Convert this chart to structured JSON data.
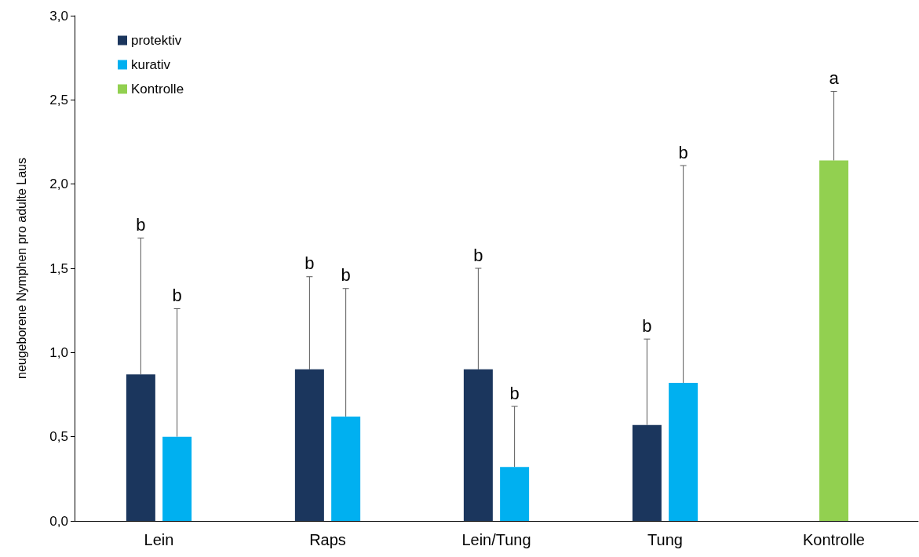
{
  "chart_data": {
    "type": "bar",
    "ylabel": "neugeborene Nymphen pro adulte Laus",
    "categories": [
      "Lein",
      "Raps",
      "Lein/Tung",
      "Tung",
      "Kontrolle"
    ],
    "series": [
      {
        "name": "protektiv",
        "color": "#1b365d",
        "values": [
          0.87,
          0.9,
          0.9,
          0.57,
          null
        ],
        "errors": [
          [
            0.87,
            1.68
          ],
          [
            0.9,
            1.45
          ],
          [
            0.9,
            1.5
          ],
          [
            0.57,
            1.08
          ],
          null
        ]
      },
      {
        "name": "kurativ",
        "color": "#00b0f0",
        "values": [
          0.5,
          0.62,
          0.32,
          0.82,
          null
        ],
        "errors": [
          [
            0.5,
            1.26
          ],
          [
            0.62,
            1.38
          ],
          [
            0.32,
            0.68
          ],
          [
            0.82,
            2.11
          ],
          null
        ]
      },
      {
        "name": "Kontrolle",
        "color": "#92d050",
        "values": [
          null,
          null,
          null,
          null,
          2.14
        ],
        "errors": [
          null,
          null,
          null,
          null,
          [
            2.14,
            2.55
          ]
        ]
      }
    ],
    "annotations": [
      "b",
      "b",
      "b",
      "b",
      "b",
      "b",
      "b",
      "b",
      "a"
    ],
    "ylim": [
      0,
      3
    ],
    "yticks": [
      {
        "value": 0,
        "label": "0,0"
      },
      {
        "value": 0.5,
        "label": "0,5"
      },
      {
        "value": 1,
        "label": "1,0"
      },
      {
        "value": 1.5,
        "label": "1,5"
      },
      {
        "value": 2,
        "label": "2,0"
      },
      {
        "value": 2.5,
        "label": "2,5"
      },
      {
        "value": 3,
        "label": "3,0"
      }
    ],
    "grid": false,
    "legend": "top left"
  }
}
